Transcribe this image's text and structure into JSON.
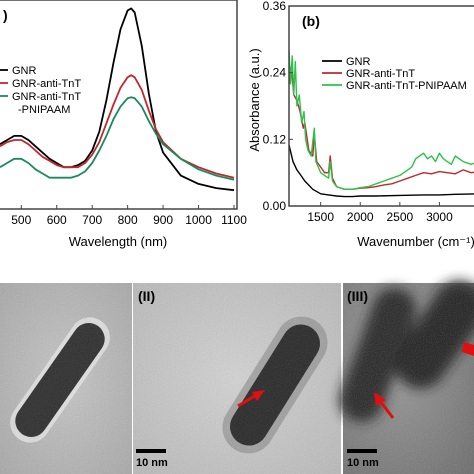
{
  "chart_data": [
    {
      "type": "line",
      "panel_label": ")",
      "xlabel": "Wavelength (nm)",
      "ylabel": "",
      "xlim": [
        440,
        1100
      ],
      "ylim": [
        0,
        1.0
      ],
      "xticks": [
        "500",
        "600",
        "700",
        "800",
        "900",
        "1000",
        "1100"
      ],
      "xtick_values": [
        500,
        600,
        700,
        800,
        900,
        1000,
        1100
      ],
      "series": [
        {
          "name": "GNR",
          "color": "#000000",
          "x": [
            440,
            460,
            480,
            500,
            520,
            540,
            560,
            580,
            600,
            620,
            640,
            660,
            680,
            700,
            720,
            740,
            760,
            780,
            800,
            810,
            820,
            840,
            860,
            880,
            900,
            950,
            1000,
            1050,
            1100
          ],
          "y": [
            0.31,
            0.33,
            0.35,
            0.35,
            0.33,
            0.3,
            0.27,
            0.24,
            0.22,
            0.2,
            0.2,
            0.21,
            0.23,
            0.28,
            0.37,
            0.52,
            0.7,
            0.86,
            0.95,
            0.96,
            0.94,
            0.78,
            0.55,
            0.37,
            0.27,
            0.16,
            0.12,
            0.1,
            0.09
          ]
        },
        {
          "name": "GNR-anti-TnT",
          "color": "#c0282d",
          "x": [
            440,
            460,
            480,
            500,
            520,
            540,
            560,
            580,
            600,
            620,
            640,
            660,
            680,
            700,
            720,
            740,
            760,
            780,
            800,
            810,
            820,
            840,
            860,
            880,
            900,
            950,
            1000,
            1050,
            1100
          ],
          "y": [
            0.3,
            0.32,
            0.33,
            0.33,
            0.31,
            0.28,
            0.25,
            0.23,
            0.21,
            0.2,
            0.2,
            0.2,
            0.22,
            0.26,
            0.32,
            0.41,
            0.5,
            0.58,
            0.63,
            0.64,
            0.63,
            0.57,
            0.47,
            0.38,
            0.32,
            0.24,
            0.2,
            0.17,
            0.15
          ]
        },
        {
          "name": "GNR-anti-TnT\n-PNIPAAM",
          "color": "#1a8a5c",
          "x": [
            440,
            460,
            480,
            500,
            520,
            540,
            560,
            580,
            600,
            620,
            640,
            660,
            680,
            700,
            720,
            740,
            760,
            780,
            800,
            810,
            820,
            840,
            860,
            880,
            900,
            950,
            1000,
            1050,
            1100
          ],
          "y": [
            0.2,
            0.22,
            0.24,
            0.24,
            0.22,
            0.19,
            0.17,
            0.15,
            0.15,
            0.15,
            0.15,
            0.16,
            0.18,
            0.22,
            0.28,
            0.35,
            0.43,
            0.49,
            0.53,
            0.535,
            0.53,
            0.49,
            0.42,
            0.36,
            0.31,
            0.24,
            0.19,
            0.16,
            0.14
          ]
        }
      ],
      "legend": "top-left"
    },
    {
      "type": "line",
      "panel_label": "(b)",
      "xlabel": "Wavenumber (cm⁻¹)",
      "ylabel": "Absorbance (a.u.)",
      "xlim": [
        1100,
        3500
      ],
      "ylim": [
        0,
        0.36
      ],
      "xticks": [
        "1500",
        "2000",
        "2500",
        "3000"
      ],
      "xtick_values": [
        1500,
        2000,
        2500,
        3000
      ],
      "yticks": [
        "0.00",
        "0.12",
        "0.24",
        "0.36"
      ],
      "ytick_values": [
        0.0,
        0.12,
        0.24,
        0.36
      ],
      "series": [
        {
          "name": "GNR",
          "color": "#000000",
          "x": [
            1100,
            1150,
            1200,
            1250,
            1300,
            1400,
            1500,
            1600,
            1700,
            1800,
            1900,
            2000,
            2200,
            2500,
            2800,
            3000,
            3200,
            3500
          ],
          "y": [
            0.11,
            0.08,
            0.065,
            0.055,
            0.045,
            0.03,
            0.022,
            0.02,
            0.018,
            0.017,
            0.017,
            0.018,
            0.018,
            0.019,
            0.02,
            0.02,
            0.021,
            0.022
          ]
        },
        {
          "name": "GNR-anti-TnT",
          "color": "#c0282d",
          "x": [
            1100,
            1130,
            1160,
            1200,
            1240,
            1280,
            1300,
            1350,
            1400,
            1420,
            1450,
            1500,
            1550,
            1600,
            1620,
            1650,
            1700,
            1800,
            1900,
            2000,
            2100,
            2200,
            2300,
            2400,
            2500,
            2600,
            2700,
            2800,
            2900,
            3000,
            3100,
            3200,
            3300,
            3400,
            3500
          ],
          "y": [
            0.22,
            0.25,
            0.2,
            0.19,
            0.17,
            0.14,
            0.15,
            0.1,
            0.09,
            0.13,
            0.08,
            0.07,
            0.06,
            0.06,
            0.09,
            0.05,
            0.035,
            0.03,
            0.03,
            0.032,
            0.033,
            0.035,
            0.038,
            0.04,
            0.045,
            0.05,
            0.055,
            0.06,
            0.058,
            0.062,
            0.06,
            0.058,
            0.065,
            0.06,
            0.062
          ]
        },
        {
          "name": "GNR-anti-TnT-PNIPAAM",
          "color": "#2fc24a",
          "x": [
            1100,
            1120,
            1140,
            1160,
            1180,
            1200,
            1230,
            1260,
            1290,
            1310,
            1340,
            1380,
            1420,
            1440,
            1470,
            1500,
            1550,
            1600,
            1620,
            1650,
            1700,
            1800,
            1900,
            2000,
            2100,
            2200,
            2300,
            2400,
            2500,
            2550,
            2600,
            2650,
            2700,
            2750,
            2800,
            2850,
            2900,
            2950,
            3000,
            3050,
            3100,
            3150,
            3200,
            3300,
            3400,
            3500
          ],
          "y": [
            0.28,
            0.22,
            0.27,
            0.2,
            0.26,
            0.18,
            0.2,
            0.15,
            0.17,
            0.12,
            0.1,
            0.09,
            0.14,
            0.08,
            0.07,
            0.06,
            0.055,
            0.05,
            0.08,
            0.045,
            0.035,
            0.03,
            0.03,
            0.033,
            0.035,
            0.04,
            0.045,
            0.05,
            0.055,
            0.06,
            0.065,
            0.07,
            0.085,
            0.09,
            0.095,
            0.085,
            0.09,
            0.08,
            0.095,
            0.085,
            0.08,
            0.075,
            0.09,
            0.08,
            0.075,
            0.08
          ]
        }
      ],
      "legend": "top-right"
    }
  ],
  "tem": {
    "panels": [
      {
        "label": "",
        "scale": ""
      },
      {
        "label": "(II)",
        "scale": "10 nm"
      },
      {
        "label": "(III)",
        "scale": "10 nm"
      }
    ]
  }
}
